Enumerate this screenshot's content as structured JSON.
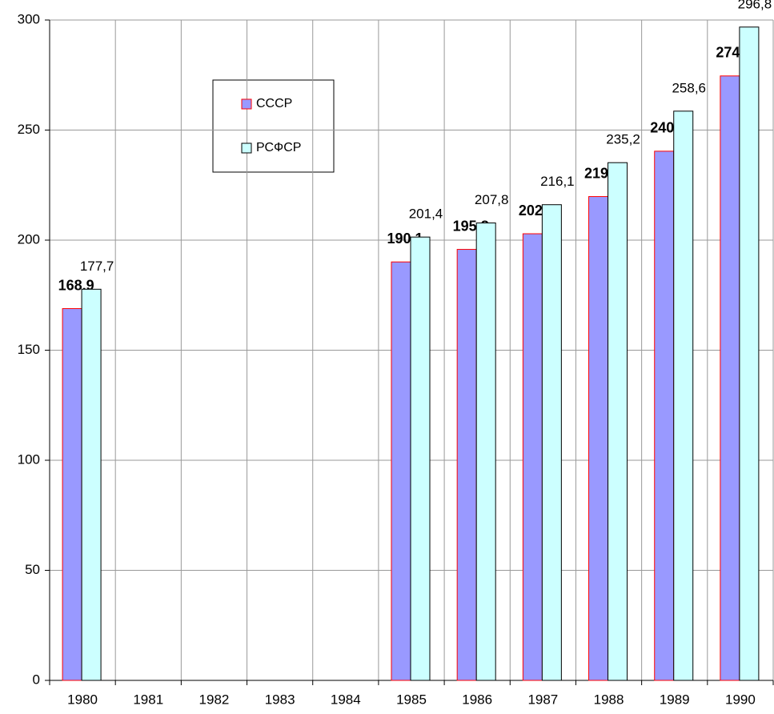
{
  "chart_data": {
    "type": "bar",
    "categories": [
      "1980",
      "1981",
      "1982",
      "1983",
      "1984",
      "1985",
      "1986",
      "1987",
      "1988",
      "1989",
      "1990"
    ],
    "series": [
      {
        "name": "СССР",
        "color": "#9999ff",
        "stroke": "#ff0000",
        "values": [
          168.9,
          null,
          null,
          null,
          null,
          190.1,
          195.8,
          202.9,
          219.8,
          240.4,
          274.6
        ],
        "value_labels": [
          "168,9",
          null,
          null,
          null,
          null,
          "190,1",
          "195,8",
          "202,9",
          "219,8",
          "240,4",
          "274,6"
        ]
      },
      {
        "name": "РСФСР",
        "color": "#ccffff",
        "stroke": "#000000",
        "values": [
          177.7,
          null,
          null,
          null,
          null,
          201.4,
          207.8,
          216.1,
          235.2,
          258.6,
          296.8
        ],
        "value_labels": [
          "177,7",
          null,
          null,
          null,
          null,
          "201,4",
          "207,8",
          "216,1",
          "235,2",
          "258,6",
          "296,8"
        ]
      }
    ],
    "ylim": [
      0,
      300
    ],
    "yticks": [
      0,
      50,
      100,
      150,
      200,
      250,
      300
    ],
    "grid": true
  }
}
